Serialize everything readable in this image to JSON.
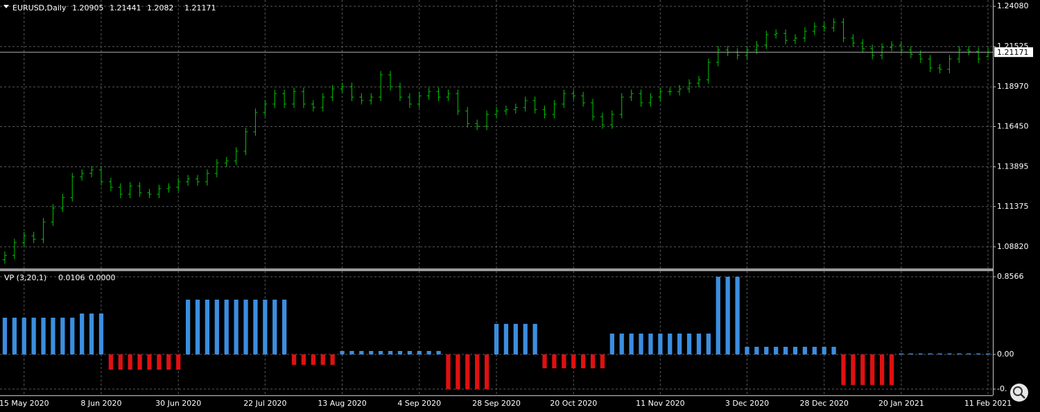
{
  "chart_data": [
    {
      "type": "ohlc",
      "title": "EURUSD,Daily",
      "color": "#00c800",
      "grid": true,
      "categories": [
        null,
        null,
        "15 May 2020",
        null,
        null,
        null,
        null,
        null,
        null,
        null,
        "8 Jun 2020",
        null,
        null,
        null,
        null,
        null,
        null,
        null,
        "30 Jun 2020",
        null,
        null,
        null,
        null,
        null,
        null,
        null,
        null,
        "22 Jul 2020",
        null,
        null,
        null,
        null,
        null,
        null,
        null,
        "13 Aug 2020",
        null,
        null,
        null,
        null,
        null,
        null,
        null,
        "4 Sep 2020",
        null,
        null,
        null,
        null,
        null,
        null,
        null,
        "28 Sep 2020",
        null,
        null,
        null,
        null,
        null,
        null,
        null,
        "20 Oct 2020",
        null,
        null,
        null,
        null,
        null,
        null,
        null,
        null,
        "11 Nov 2020",
        null,
        null,
        null,
        null,
        null,
        null,
        null,
        null,
        "3 Dec 2020",
        null,
        null,
        null,
        null,
        null,
        null,
        null,
        "28 Dec 2020",
        null,
        null,
        null,
        null,
        null,
        null,
        null,
        "20 Jan 2021",
        null,
        null,
        null,
        null,
        null,
        null,
        null,
        null,
        "11 Feb 2021"
      ],
      "open": [
        1.08,
        1.0828,
        1.0908,
        1.0952,
        1.093,
        1.104,
        1.1128,
        1.1194,
        1.1326,
        1.1348,
        1.137,
        1.1295,
        1.126,
        1.1216,
        1.1268,
        1.1225,
        1.1216,
        1.1251,
        1.126,
        1.1295,
        1.1313,
        1.1295,
        1.1348,
        1.1414,
        1.1427,
        1.1489,
        1.1612,
        1.1735,
        1.1788,
        1.1854,
        1.1788,
        1.1867,
        1.1788,
        1.1766,
        1.1832,
        1.1884,
        1.1898,
        1.1832,
        1.181,
        1.1832,
        1.1973,
        1.1898,
        1.1832,
        1.1788,
        1.184,
        1.1867,
        1.1832,
        1.1854,
        1.1744,
        1.1664,
        1.1647,
        1.1722,
        1.1744,
        1.1753,
        1.1766,
        1.181,
        1.1753,
        1.1722,
        1.1788,
        1.1854,
        1.184,
        1.1796,
        1.1708,
        1.1656,
        1.1722,
        1.1832,
        1.1854,
        1.1796,
        1.1832,
        1.1867,
        1.1867,
        1.1884,
        1.192,
        1.1942,
        1.2052,
        1.2131,
        1.2117,
        1.2096,
        1.2131,
        1.2162,
        1.2228,
        1.2236,
        1.2192,
        1.2206,
        1.225,
        1.228,
        1.2272,
        1.2307,
        1.2206,
        1.2175,
        1.214,
        1.2096,
        1.2148,
        1.2162,
        1.2131,
        1.2104,
        1.2074,
        1.2017,
        1.2008,
        1.2074,
        1.2131,
        1.2122,
        1.20905
      ],
      "high": [
        1.0853,
        1.0933,
        1.0977,
        1.0977,
        1.1065,
        1.1153,
        1.1219,
        1.1351,
        1.1373,
        1.1395,
        1.1395,
        1.132,
        1.1285,
        1.1293,
        1.1293,
        1.125,
        1.1276,
        1.1285,
        1.132,
        1.1338,
        1.1338,
        1.1373,
        1.1439,
        1.1452,
        1.1514,
        1.1637,
        1.176,
        1.1813,
        1.1879,
        1.1879,
        1.1892,
        1.1892,
        1.1813,
        1.1857,
        1.1909,
        1.1923,
        1.1923,
        1.1857,
        1.1857,
        1.1998,
        1.1998,
        1.1923,
        1.1857,
        1.1865,
        1.1892,
        1.1892,
        1.1879,
        1.1879,
        1.1769,
        1.1689,
        1.1747,
        1.1769,
        1.1778,
        1.1791,
        1.1835,
        1.1835,
        1.1778,
        1.1813,
        1.1879,
        1.1879,
        1.1865,
        1.1821,
        1.1733,
        1.1747,
        1.1857,
        1.1879,
        1.1879,
        1.1857,
        1.1892,
        1.1892,
        1.1909,
        1.1945,
        1.1967,
        1.2077,
        1.2156,
        1.2156,
        1.2142,
        1.2156,
        1.2187,
        1.2253,
        1.2261,
        1.2261,
        1.2231,
        1.2275,
        1.2305,
        1.2305,
        1.2332,
        1.2332,
        1.2231,
        1.22,
        1.2165,
        1.2173,
        1.2187,
        1.2187,
        1.2156,
        1.2129,
        1.2099,
        1.2042,
        1.2099,
        1.2156,
        1.2156,
        1.2147,
        1.21441
      ],
      "low": [
        1.0775,
        1.0803,
        1.0883,
        1.0905,
        1.0905,
        1.1015,
        1.1103,
        1.1169,
        1.1301,
        1.1323,
        1.127,
        1.1235,
        1.1191,
        1.1191,
        1.12,
        1.1191,
        1.1191,
        1.1226,
        1.1235,
        1.127,
        1.127,
        1.127,
        1.1323,
        1.1389,
        1.1402,
        1.1464,
        1.1587,
        1.171,
        1.1763,
        1.1763,
        1.1763,
        1.1763,
        1.1741,
        1.1741,
        1.1807,
        1.1859,
        1.1807,
        1.1785,
        1.1785,
        1.1807,
        1.1873,
        1.1807,
        1.1763,
        1.1763,
        1.1815,
        1.1807,
        1.1807,
        1.1719,
        1.1639,
        1.1622,
        1.1622,
        1.1697,
        1.1719,
        1.1728,
        1.1741,
        1.1728,
        1.1697,
        1.1697,
        1.1763,
        1.1815,
        1.1771,
        1.1683,
        1.1631,
        1.1631,
        1.1697,
        1.1807,
        1.1771,
        1.1771,
        1.1807,
        1.1842,
        1.1842,
        1.1859,
        1.1895,
        1.1917,
        1.2027,
        1.2092,
        1.2071,
        1.2071,
        1.2106,
        1.2137,
        1.2203,
        1.2167,
        1.2167,
        1.2181,
        1.2225,
        1.2247,
        1.2247,
        1.2181,
        1.215,
        1.2115,
        1.2071,
        1.2071,
        1.2123,
        1.2106,
        1.2079,
        1.2049,
        1.1992,
        1.1983,
        1.1983,
        1.2049,
        1.2097,
        1.2049,
        1.2082
      ],
      "close": [
        1.0828,
        1.0908,
        1.0952,
        1.093,
        1.104,
        1.1128,
        1.1194,
        1.1326,
        1.1348,
        1.137,
        1.1295,
        1.126,
        1.1216,
        1.1268,
        1.1225,
        1.1216,
        1.1251,
        1.126,
        1.1295,
        1.1313,
        1.1295,
        1.1348,
        1.1414,
        1.1427,
        1.1489,
        1.1612,
        1.1735,
        1.1788,
        1.1854,
        1.1788,
        1.1867,
        1.1788,
        1.1766,
        1.1832,
        1.1884,
        1.1898,
        1.1832,
        1.181,
        1.1832,
        1.1973,
        1.1898,
        1.1832,
        1.1788,
        1.184,
        1.1867,
        1.1832,
        1.1854,
        1.1744,
        1.1664,
        1.1647,
        1.1722,
        1.1744,
        1.1753,
        1.1766,
        1.181,
        1.1753,
        1.1722,
        1.1788,
        1.1854,
        1.184,
        1.1796,
        1.1708,
        1.1656,
        1.1722,
        1.1832,
        1.1854,
        1.1796,
        1.1832,
        1.1867,
        1.1867,
        1.1884,
        1.192,
        1.1942,
        1.2052,
        1.2131,
        1.2117,
        1.2096,
        1.2131,
        1.2162,
        1.2228,
        1.2236,
        1.2192,
        1.2206,
        1.225,
        1.228,
        1.2272,
        1.2307,
        1.2206,
        1.2175,
        1.214,
        1.2096,
        1.2148,
        1.2162,
        1.2131,
        1.2104,
        1.2074,
        1.2017,
        1.2008,
        1.2074,
        1.2131,
        1.2122,
        1.2074,
        1.21171
      ],
      "ylim": [
        1.0745,
        1.2448
      ],
      "yticks": [
        {
          "value": 1.2408,
          "label": "1.24080"
        },
        1.21525,
        {
          "value": 1.1897,
          "label": "1.18970"
        },
        {
          "value": 1.1645,
          "label": "1.16450"
        },
        1.13895,
        1.11375,
        {
          "value": 1.0882,
          "label": "1.08820"
        }
      ]
    },
    {
      "type": "histogram-bars",
      "title": "VP (3,20,1)",
      "positive_color": "#3c8ee0",
      "negative_color": "#e01010",
      "grid": true,
      "values": [
        0.405,
        0.405,
        0.405,
        0.405,
        0.405,
        0.405,
        0.405,
        0.405,
        0.451,
        0.451,
        0.451,
        -0.168,
        -0.168,
        -0.168,
        -0.168,
        -0.168,
        -0.168,
        -0.168,
        -0.168,
        0.604,
        0.604,
        0.604,
        0.604,
        0.604,
        0.604,
        0.604,
        0.604,
        0.604,
        0.604,
        0.604,
        -0.115,
        -0.115,
        -0.115,
        -0.115,
        -0.115,
        0.038,
        0.038,
        0.038,
        0.038,
        0.038,
        0.038,
        0.038,
        0.038,
        0.038,
        0.038,
        0.038,
        -0.383,
        -0.383,
        -0.383,
        -0.383,
        -0.383,
        0.337,
        0.337,
        0.337,
        0.337,
        0.337,
        -0.153,
        -0.153,
        -0.153,
        -0.153,
        -0.153,
        -0.153,
        -0.153,
        0.23,
        0.23,
        0.23,
        0.23,
        0.23,
        0.23,
        0.23,
        0.23,
        0.23,
        0.23,
        0.23,
        0.8566,
        0.8566,
        0.8566,
        0.084,
        0.084,
        0.084,
        0.084,
        0.084,
        0.084,
        0.084,
        0.084,
        0.084,
        0.084,
        -0.337,
        -0.337,
        -0.337,
        -0.337,
        -0.337,
        -0.337,
        0.0106,
        0.0106,
        0.0106,
        0.0106,
        0.0106,
        0.0106,
        0.0106,
        0.0106,
        0.0106,
        0.0106
      ],
      "second_value": {
        "value": 0,
        "label": "0.0000"
      },
      "ylim": [
        -0.4514,
        0.9178
      ],
      "yticks": [
        0.8566,
        {
          "value": 0,
          "label": "0.00"
        },
        {
          "value": -0.3824,
          "label": "-0."
        }
      ]
    }
  ]
}
